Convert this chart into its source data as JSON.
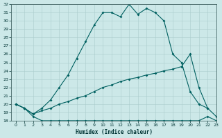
{
  "xlabel": "Humidex (Indice chaleur)",
  "x_ticks": [
    0,
    1,
    2,
    3,
    4,
    5,
    6,
    7,
    8,
    9,
    10,
    11,
    12,
    13,
    14,
    15,
    16,
    17,
    18,
    19,
    20,
    21,
    22,
    23
  ],
  "ylim": [
    18,
    32
  ],
  "xlim": [
    -0.5,
    23
  ],
  "y_ticks": [
    18,
    19,
    20,
    21,
    22,
    23,
    24,
    25,
    26,
    27,
    28,
    29,
    30,
    31,
    32
  ],
  "bg_color": "#cce8e8",
  "grid_color": "#aacccc",
  "line_color": "#006060",
  "series1_x": [
    0,
    1,
    2,
    3,
    4,
    5,
    6,
    7,
    8,
    9,
    10,
    11,
    12,
    13,
    14,
    15,
    16,
    17,
    18,
    19,
    20,
    21,
    22
  ],
  "series1_y": [
    20.0,
    19.5,
    18.8,
    19.5,
    20.5,
    22.0,
    23.5,
    25.5,
    27.5,
    29.5,
    31.0,
    31.0,
    30.5,
    32.0,
    30.8,
    31.5,
    31.0,
    30.0,
    26.0,
    25.0,
    21.5,
    20.0,
    19.5
  ],
  "series2_x": [
    0,
    1,
    2,
    3,
    4,
    5,
    6,
    7,
    8,
    9,
    10,
    11,
    12,
    13,
    14,
    15,
    16,
    17,
    18,
    19,
    20,
    21,
    22,
    23
  ],
  "series2_y": [
    20.0,
    19.5,
    18.5,
    18.0,
    18.0,
    18.0,
    18.0,
    18.0,
    18.0,
    18.0,
    18.0,
    18.0,
    18.0,
    18.0,
    18.0,
    18.0,
    18.0,
    18.0,
    18.0,
    18.0,
    18.0,
    18.0,
    18.5,
    18.0
  ],
  "series3_x": [
    0,
    1,
    2,
    3,
    4,
    5,
    6,
    7,
    8,
    9,
    10,
    11,
    12,
    13,
    14,
    15,
    16,
    17,
    18,
    19,
    20,
    21,
    22,
    23
  ],
  "series3_y": [
    20.0,
    19.5,
    18.8,
    19.2,
    19.5,
    20.0,
    20.3,
    20.7,
    21.0,
    21.5,
    22.0,
    22.3,
    22.7,
    23.0,
    23.2,
    23.5,
    23.7,
    24.0,
    24.2,
    24.5,
    26.0,
    22.0,
    19.5,
    18.5
  ]
}
